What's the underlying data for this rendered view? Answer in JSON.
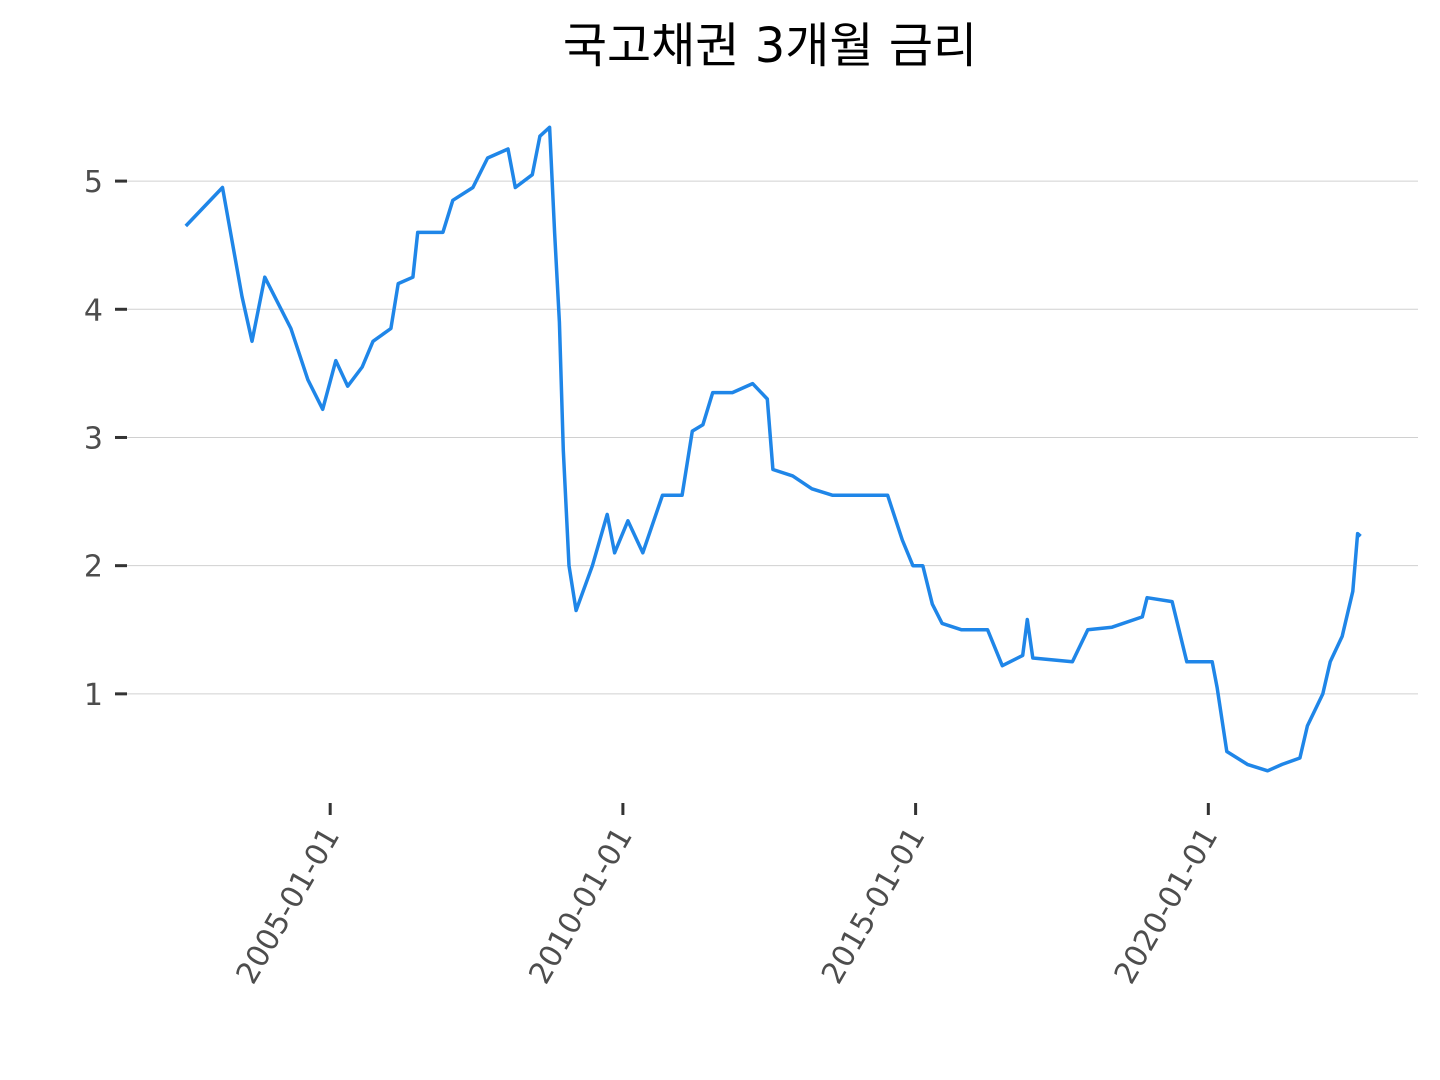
{
  "chart_data": {
    "type": "line",
    "title": "국고채권 3개월 금리",
    "x": [
      "2002-07-15",
      "2003-03-01",
      "2003-07-01",
      "2003-09-01",
      "2003-11-20",
      "2004-05-01",
      "2004-08-15",
      "2004-11-15",
      "2005-02-05",
      "2005-04-20",
      "2005-07-20",
      "2005-09-25",
      "2006-01-15",
      "2006-03-01",
      "2006-06-01",
      "2006-07-01",
      "2006-12-05",
      "2007-02-05",
      "2007-06-10",
      "2007-09-10",
      "2008-01-15",
      "2008-03-01",
      "2008-06-15",
      "2008-08-01",
      "2008-10-01",
      "2008-11-01",
      "2008-12-01",
      "2008-12-25",
      "2009-01-30",
      "2009-03-15",
      "2009-06-25",
      "2009-09-25",
      "2009-11-10",
      "2010-02-01",
      "2010-05-05",
      "2010-09-05",
      "2011-01-05",
      "2011-03-10",
      "2011-05-15",
      "2011-07-15",
      "2011-11-15",
      "2012-03-20",
      "2012-06-20",
      "2012-07-25",
      "2012-11-25",
      "2013-03-25",
      "2013-07-30",
      "2014-07-10",
      "2014-10-10",
      "2014-12-15",
      "2015-02-15",
      "2015-04-15",
      "2015-06-15",
      "2015-10-15",
      "2016-03-25",
      "2016-06-25",
      "2016-10-30",
      "2016-11-28",
      "2017-01-01",
      "2017-09-05",
      "2017-12-10",
      "2018-05-10",
      "2018-11-15",
      "2018-12-15",
      "2019-05-20",
      "2019-08-20",
      "2020-01-25",
      "2020-02-25",
      "2020-04-25",
      "2020-09-01",
      "2021-01-05",
      "2021-04-05",
      "2021-07-25",
      "2021-09-10",
      "2021-12-15",
      "2022-01-30",
      "2022-04-15",
      "2022-06-20",
      "2022-07-20",
      "2022-08-08"
    ],
    "series": [
      {
        "name": "국고채권 3개월 금리",
        "color": "#1f86e8",
        "values": [
          4.65,
          4.95,
          4.1,
          3.75,
          4.25,
          3.85,
          3.45,
          3.22,
          3.6,
          3.4,
          3.55,
          3.75,
          3.85,
          4.2,
          4.25,
          4.6,
          4.6,
          4.85,
          4.95,
          5.18,
          5.25,
          4.95,
          5.05,
          5.35,
          5.42,
          4.6,
          3.9,
          2.9,
          2.0,
          1.65,
          2.0,
          2.4,
          2.1,
          2.35,
          2.1,
          2.55,
          2.55,
          3.05,
          3.1,
          3.35,
          3.35,
          3.42,
          3.3,
          2.75,
          2.7,
          2.6,
          2.55,
          2.55,
          2.2,
          2.0,
          2.0,
          1.7,
          1.55,
          1.5,
          1.5,
          1.22,
          1.3,
          1.58,
          1.28,
          1.25,
          1.5,
          1.52,
          1.6,
          1.75,
          1.72,
          1.25,
          1.25,
          1.05,
          0.55,
          0.45,
          0.4,
          0.45,
          0.5,
          0.75,
          1.0,
          1.25,
          1.45,
          1.8,
          2.25,
          2.23
        ]
      }
    ],
    "xlim": [
      "2001-07-01",
      "2023-08-01"
    ],
    "xticks": [
      "2005-01-01",
      "2010-01-01",
      "2015-01-01",
      "2020-01-01"
    ],
    "ylim": [
      0.25,
      5.5
    ],
    "yticks": [
      1,
      2,
      3,
      4,
      5
    ],
    "grid": true
  }
}
